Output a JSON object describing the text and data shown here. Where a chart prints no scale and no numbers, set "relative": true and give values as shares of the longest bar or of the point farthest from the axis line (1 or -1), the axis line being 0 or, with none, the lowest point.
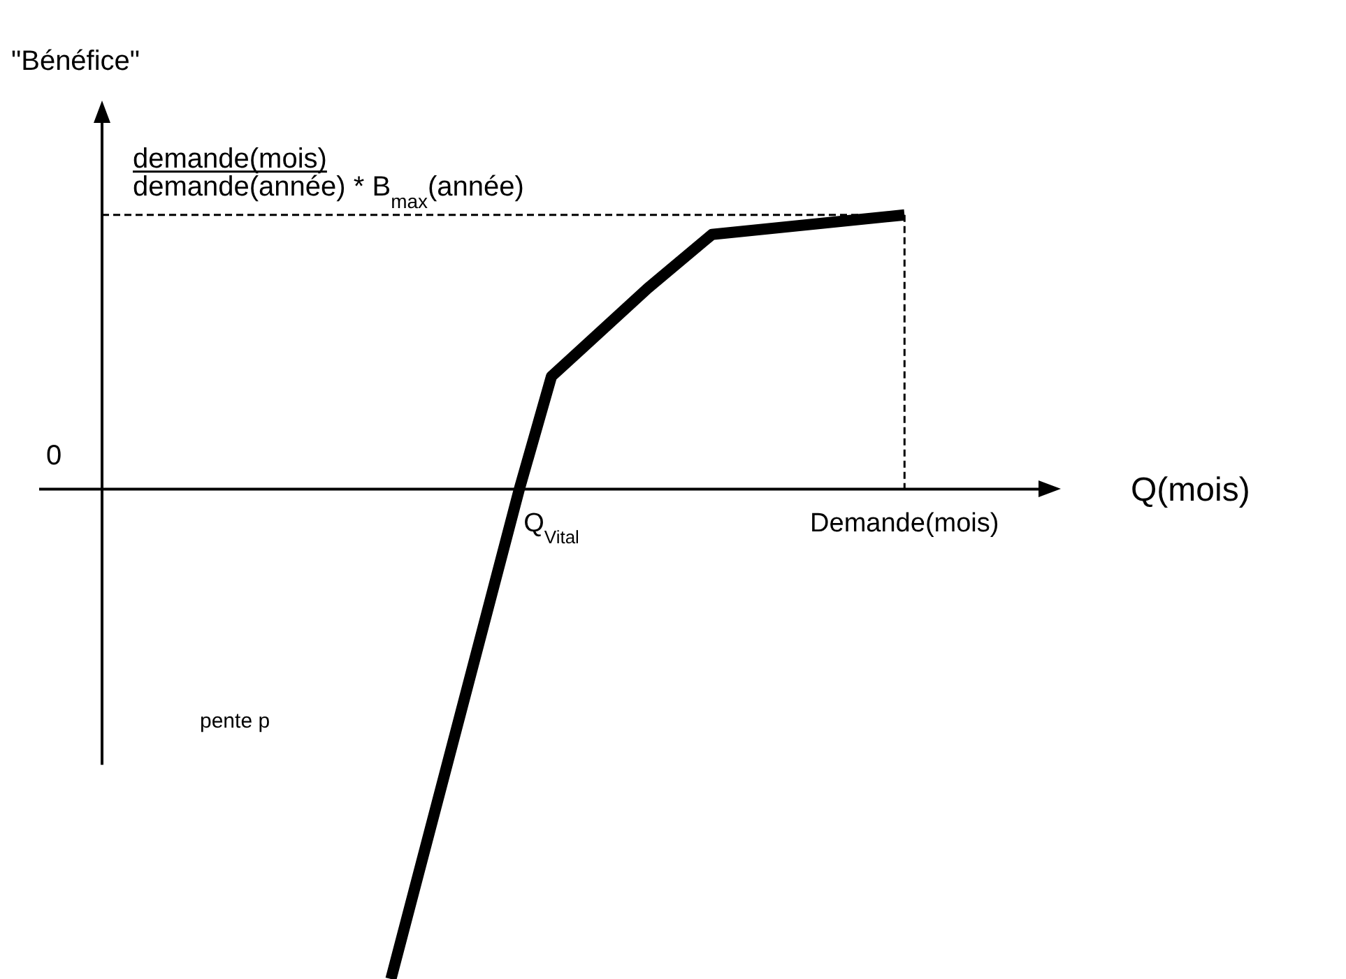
{
  "chart_data": {
    "type": "line",
    "relative": true,
    "ylabel": "\"Bénéfice\"",
    "xlabel": "Q(mois)",
    "categories": [
      null,
      null,
      null,
      null,
      null,
      null,
      null,
      null,
      null,
      null,
      null,
      null,
      null,
      null,
      "Q$_{Vital}$",
      null,
      null,
      null,
      null,
      null,
      null,
      null,
      null,
      null,
      null,
      "Demande(mois)",
      null,
      null,
      null,
      null
    ],
    "series": [
      {
        "color": "#000000",
        "values": [
          null,
          null,
          null,
          null,
          null,
          null,
          null,
          null,
          null,
          -1,
          null,
          null,
          null,
          0,
          0.23,
          null,
          null,
          0.41,
          null,
          0.52,
          null,
          null,
          null,
          null,
          null,
          0.56,
          null,
          null,
          null,
          null
        ]
      }
    ],
    "ref_lines": [
      {
        "axis": "y",
        "value": 0.56,
        "label": "demande(mois)\ndemande(année) * B$_{max}$(année)",
        "color": "#000000",
        "line_style": "dashed"
      },
      {
        "axis": "x",
        "value": "Demande(mois)",
        "color": "#000000",
        "line_style": "dashed"
      }
    ],
    "annotations": [
      "0",
      "pente p"
    ],
    "marker": "none",
    "legend": false,
    "line_style": "solid"
  }
}
